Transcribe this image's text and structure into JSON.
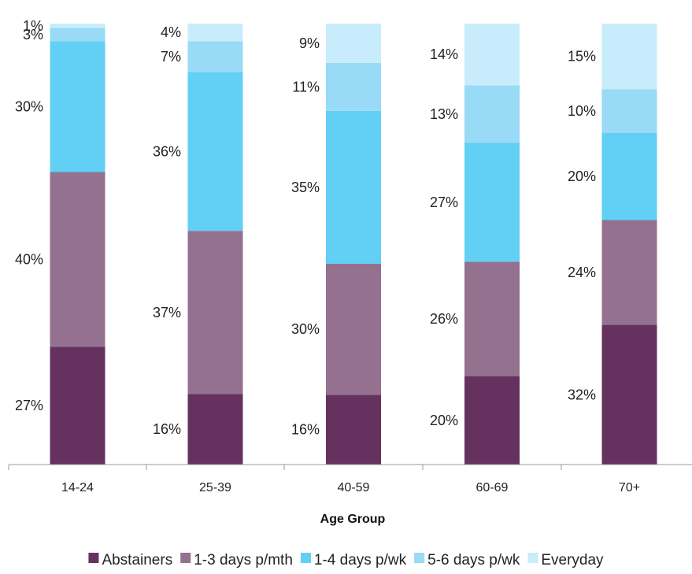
{
  "chart_data": {
    "type": "bar",
    "stacked": true,
    "categories": [
      "14-24",
      "25-39",
      "40-59",
      "60-69",
      "70+"
    ],
    "xlabel": "Age Group",
    "ylabel": "",
    "ylim": [
      0,
      100
    ],
    "grid": false,
    "legend_position": "bottom",
    "series": [
      {
        "name": "Abstainers",
        "color": "#65325f",
        "values": [
          27,
          16,
          16,
          20,
          32
        ],
        "labels": [
          "27%",
          "16%",
          "16%",
          "20%",
          "32%"
        ]
      },
      {
        "name": "1-3 days p/mth",
        "color": "#94718f",
        "values": [
          40,
          37,
          30,
          26,
          24
        ],
        "labels": [
          "40%",
          "37%",
          "30%",
          "26%",
          "24%"
        ]
      },
      {
        "name": "1-4 days p/wk",
        "color": "#62cff5",
        "values": [
          30,
          36,
          35,
          27,
          20
        ],
        "labels": [
          "30%",
          "36%",
          "35%",
          "27%",
          "20%"
        ]
      },
      {
        "name": "5-6 days p/wk",
        "color": "#99daf6",
        "values": [
          3,
          7,
          11,
          13,
          10
        ],
        "labels": [
          "3%",
          "7%",
          "11%",
          "13%",
          "10%"
        ]
      },
      {
        "name": "Everyday",
        "color": "#c8ecfb",
        "values": [
          1,
          4,
          9,
          14,
          15
        ],
        "labels": [
          "1%",
          "4%",
          "9%",
          "14%",
          "15%"
        ]
      }
    ]
  }
}
